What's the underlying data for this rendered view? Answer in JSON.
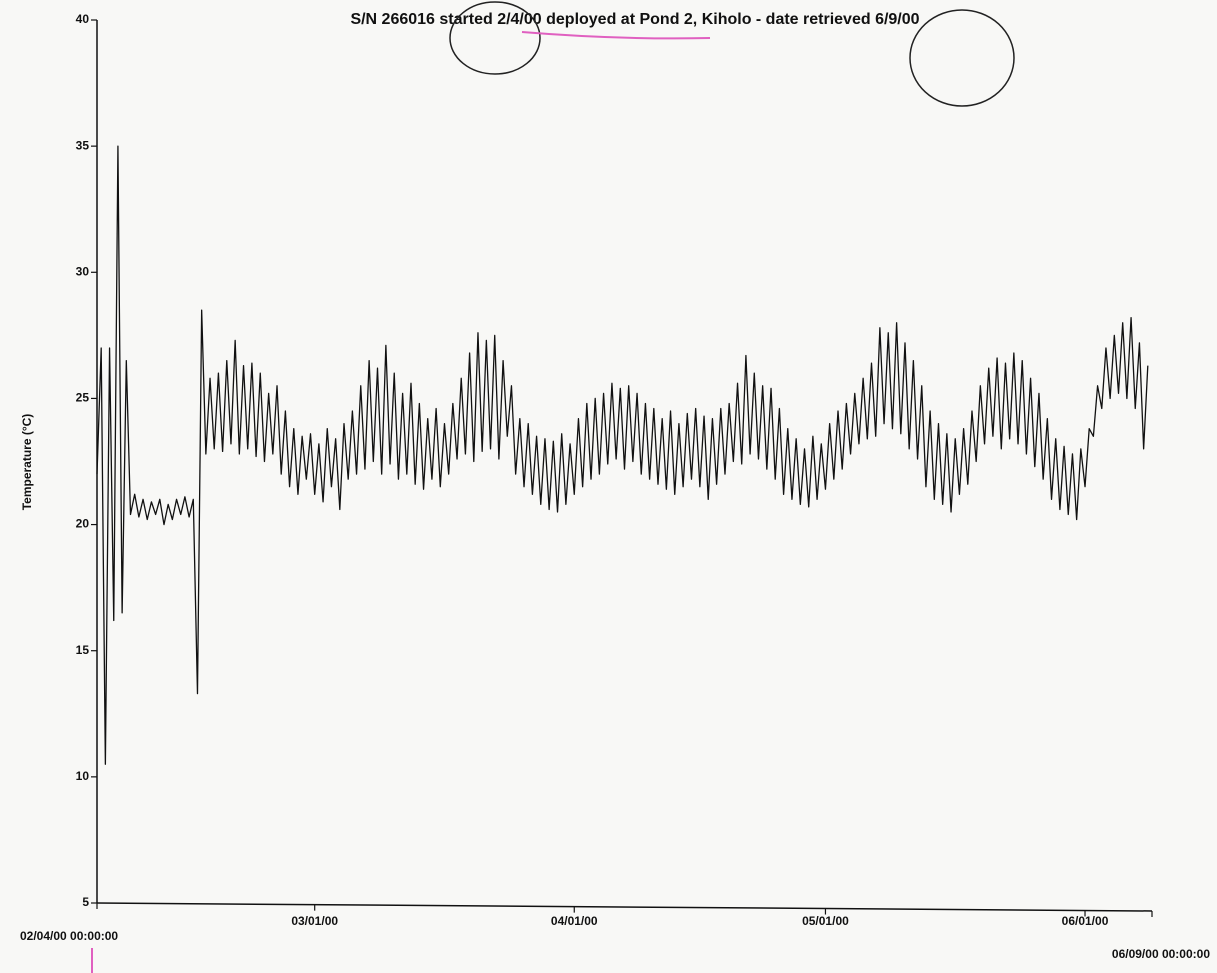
{
  "chart_data": {
    "type": "line",
    "title": "S/N 266016 started 2/4/00 deployed at Pond 2, Kiholo - date retrieved 6/9/00",
    "y_label": "Temperature  (°C)",
    "color": "#111111",
    "xlim": [
      "2000-02-04T00:00",
      "2000-06-09T00:00"
    ],
    "xticks": [
      {
        "value": "2000-02-04T00:00",
        "label": "02/04/00 00:00:00"
      },
      {
        "value": "2000-03-01T00:00",
        "label": "03/01/00"
      },
      {
        "value": "2000-04-01T00:00",
        "label": "04/01/00"
      },
      {
        "value": "2000-05-01T00:00",
        "label": "05/01/00"
      },
      {
        "value": "2000-06-01T00:00",
        "label": "06/01/00"
      },
      {
        "value": "2000-06-09T00:00",
        "label": "06/09/00 00:00:00"
      }
    ],
    "ylim": [
      5,
      40
    ],
    "yticks": [
      5,
      10,
      15,
      20,
      25,
      30,
      35,
      40
    ],
    "x": [
      "2000-02-04T00:00",
      "2000-02-04T12:00",
      "2000-02-05T00:00",
      "2000-02-05T12:00",
      "2000-02-06T00:00",
      "2000-02-06T12:00",
      "2000-02-07T00:00",
      "2000-02-07T12:00",
      "2000-02-08T00:00",
      "2000-02-08T12:00",
      "2000-02-09T00:00",
      "2000-02-09T12:00",
      "2000-02-10T00:00",
      "2000-02-10T12:00",
      "2000-02-11T00:00",
      "2000-02-11T12:00",
      "2000-02-12T00:00",
      "2000-02-12T12:00",
      "2000-02-13T00:00",
      "2000-02-13T12:00",
      "2000-02-14T00:00",
      "2000-02-14T12:00",
      "2000-02-15T00:00",
      "2000-02-15T12:00",
      "2000-02-16T00:00",
      "2000-02-16T12:00",
      "2000-02-17T00:00",
      "2000-02-17T12:00",
      "2000-02-18T00:00",
      "2000-02-18T12:00",
      "2000-02-19T00:00",
      "2000-02-19T12:00",
      "2000-02-20T00:00",
      "2000-02-20T12:00",
      "2000-02-21T00:00",
      "2000-02-21T12:00",
      "2000-02-22T00:00",
      "2000-02-22T12:00",
      "2000-02-23T00:00",
      "2000-02-23T12:00",
      "2000-02-24T00:00",
      "2000-02-24T12:00",
      "2000-02-25T00:00",
      "2000-02-25T12:00",
      "2000-02-26T00:00",
      "2000-02-26T12:00",
      "2000-02-27T00:00",
      "2000-02-27T12:00",
      "2000-02-28T00:00",
      "2000-02-28T12:00",
      "2000-02-29T00:00",
      "2000-02-29T12:00",
      "2000-03-01T00:00",
      "2000-03-01T12:00",
      "2000-03-02T00:00",
      "2000-03-02T12:00",
      "2000-03-03T00:00",
      "2000-03-03T12:00",
      "2000-03-04T00:00",
      "2000-03-04T12:00",
      "2000-03-05T00:00",
      "2000-03-05T12:00",
      "2000-03-06T00:00",
      "2000-03-06T12:00",
      "2000-03-07T00:00",
      "2000-03-07T12:00",
      "2000-03-08T00:00",
      "2000-03-08T12:00",
      "2000-03-09T00:00",
      "2000-03-09T12:00",
      "2000-03-10T00:00",
      "2000-03-10T12:00",
      "2000-03-11T00:00",
      "2000-03-11T12:00",
      "2000-03-12T00:00",
      "2000-03-12T12:00",
      "2000-03-13T00:00",
      "2000-03-13T12:00",
      "2000-03-14T00:00",
      "2000-03-14T12:00",
      "2000-03-15T00:00",
      "2000-03-15T12:00",
      "2000-03-16T00:00",
      "2000-03-16T12:00",
      "2000-03-17T00:00",
      "2000-03-17T12:00",
      "2000-03-18T00:00",
      "2000-03-18T12:00",
      "2000-03-19T00:00",
      "2000-03-19T12:00",
      "2000-03-20T00:00",
      "2000-03-20T12:00",
      "2000-03-21T00:00",
      "2000-03-21T12:00",
      "2000-03-22T00:00",
      "2000-03-22T12:00",
      "2000-03-23T00:00",
      "2000-03-23T12:00",
      "2000-03-24T00:00",
      "2000-03-24T12:00",
      "2000-03-25T00:00",
      "2000-03-25T12:00",
      "2000-03-26T00:00",
      "2000-03-26T12:00",
      "2000-03-27T00:00",
      "2000-03-27T12:00",
      "2000-03-28T00:00",
      "2000-03-28T12:00",
      "2000-03-29T00:00",
      "2000-03-29T12:00",
      "2000-03-30T00:00",
      "2000-03-30T12:00",
      "2000-03-31T00:00",
      "2000-03-31T12:00",
      "2000-04-01T00:00",
      "2000-04-01T12:00",
      "2000-04-02T00:00",
      "2000-04-02T12:00",
      "2000-04-03T00:00",
      "2000-04-03T12:00",
      "2000-04-04T00:00",
      "2000-04-04T12:00",
      "2000-04-05T00:00",
      "2000-04-05T12:00",
      "2000-04-06T00:00",
      "2000-04-06T12:00",
      "2000-04-07T00:00",
      "2000-04-07T12:00",
      "2000-04-08T00:00",
      "2000-04-08T12:00",
      "2000-04-09T00:00",
      "2000-04-09T12:00",
      "2000-04-10T00:00",
      "2000-04-10T12:00",
      "2000-04-11T00:00",
      "2000-04-11T12:00",
      "2000-04-12T00:00",
      "2000-04-12T12:00",
      "2000-04-13T00:00",
      "2000-04-13T12:00",
      "2000-04-14T00:00",
      "2000-04-14T12:00",
      "2000-04-15T00:00",
      "2000-04-15T12:00",
      "2000-04-16T00:00",
      "2000-04-16T12:00",
      "2000-04-17T00:00",
      "2000-04-17T12:00",
      "2000-04-18T00:00",
      "2000-04-18T12:00",
      "2000-04-19T00:00",
      "2000-04-19T12:00",
      "2000-04-20T00:00",
      "2000-04-20T12:00",
      "2000-04-21T00:00",
      "2000-04-21T12:00",
      "2000-04-22T00:00",
      "2000-04-22T12:00",
      "2000-04-23T00:00",
      "2000-04-23T12:00",
      "2000-04-24T00:00",
      "2000-04-24T12:00",
      "2000-04-25T00:00",
      "2000-04-25T12:00",
      "2000-04-26T00:00",
      "2000-04-26T12:00",
      "2000-04-27T00:00",
      "2000-04-27T12:00",
      "2000-04-28T00:00",
      "2000-04-28T12:00",
      "2000-04-29T00:00",
      "2000-04-29T12:00",
      "2000-04-30T00:00",
      "2000-04-30T12:00",
      "2000-05-01T00:00",
      "2000-05-01T12:00",
      "2000-05-02T00:00",
      "2000-05-02T12:00",
      "2000-05-03T00:00",
      "2000-05-03T12:00",
      "2000-05-04T00:00",
      "2000-05-04T12:00",
      "2000-05-05T00:00",
      "2000-05-05T12:00",
      "2000-05-06T00:00",
      "2000-05-06T12:00",
      "2000-05-07T00:00",
      "2000-05-07T12:00",
      "2000-05-08T00:00",
      "2000-05-08T12:00",
      "2000-05-09T00:00",
      "2000-05-09T12:00",
      "2000-05-10T00:00",
      "2000-05-10T12:00",
      "2000-05-11T00:00",
      "2000-05-11T12:00",
      "2000-05-12T00:00",
      "2000-05-12T12:00",
      "2000-05-13T00:00",
      "2000-05-13T12:00",
      "2000-05-14T00:00",
      "2000-05-14T12:00",
      "2000-05-15T00:00",
      "2000-05-15T12:00",
      "2000-05-16T00:00",
      "2000-05-16T12:00",
      "2000-05-17T00:00",
      "2000-05-17T12:00",
      "2000-05-18T00:00",
      "2000-05-18T12:00",
      "2000-05-19T00:00",
      "2000-05-19T12:00",
      "2000-05-20T00:00",
      "2000-05-20T12:00",
      "2000-05-21T00:00",
      "2000-05-21T12:00",
      "2000-05-22T00:00",
      "2000-05-22T12:00",
      "2000-05-23T00:00",
      "2000-05-23T12:00",
      "2000-05-24T00:00",
      "2000-05-24T12:00",
      "2000-05-25T00:00",
      "2000-05-25T12:00",
      "2000-05-26T00:00",
      "2000-05-26T12:00",
      "2000-05-27T00:00",
      "2000-05-27T12:00",
      "2000-05-28T00:00",
      "2000-05-28T12:00",
      "2000-05-29T00:00",
      "2000-05-29T12:00",
      "2000-05-30T00:00",
      "2000-05-30T12:00",
      "2000-05-31T00:00",
      "2000-05-31T12:00",
      "2000-06-01T00:00",
      "2000-06-01T12:00",
      "2000-06-02T00:00",
      "2000-06-02T12:00",
      "2000-06-03T00:00",
      "2000-06-03T12:00",
      "2000-06-04T00:00",
      "2000-06-04T12:00",
      "2000-06-05T00:00",
      "2000-06-05T12:00",
      "2000-06-06T00:00",
      "2000-06-06T12:00",
      "2000-06-07T00:00",
      "2000-06-07T12:00",
      "2000-06-08T00:00",
      "2000-06-08T12:00"
    ],
    "values": [
      22,
      27,
      10.5,
      27,
      16.2,
      35,
      16.5,
      26.5,
      20.4,
      21.2,
      20.3,
      21,
      20.2,
      20.9,
      20.4,
      21,
      20,
      20.8,
      20.2,
      21,
      20.4,
      21.1,
      20.3,
      21,
      13.3,
      28.5,
      22.8,
      25.8,
      23,
      26,
      22.9,
      26.5,
      23.2,
      27.3,
      22.8,
      26.3,
      23,
      26.4,
      22.7,
      26,
      22.5,
      25.2,
      22.8,
      25.5,
      22,
      24.5,
      21.5,
      23.8,
      21.2,
      23.5,
      21.8,
      23.6,
      21.2,
      23.2,
      20.9,
      23.8,
      21.5,
      23.4,
      20.6,
      24,
      21.8,
      24.5,
      22,
      25.5,
      22.2,
      26.5,
      22.5,
      26.2,
      22,
      27.1,
      22.4,
      26,
      21.8,
      25.2,
      22,
      25.6,
      21.6,
      24.8,
      21.4,
      24.2,
      21.8,
      24.6,
      21.5,
      24,
      22,
      24.8,
      22.6,
      25.8,
      22.8,
      26.8,
      22.5,
      27.6,
      22.9,
      27.3,
      23,
      27.5,
      22.6,
      26.5,
      23.5,
      25.5,
      22,
      24.2,
      21.5,
      24,
      21.2,
      23.5,
      20.8,
      23.4,
      20.6,
      23.3,
      20.5,
      23.6,
      20.8,
      23.2,
      21.2,
      24.2,
      21.5,
      24.8,
      21.8,
      25,
      22,
      25.2,
      22.4,
      25.6,
      22.6,
      25.4,
      22.2,
      25.5,
      22.5,
      25.2,
      22,
      24.8,
      21.8,
      24.6,
      21.6,
      24.2,
      21.4,
      24.5,
      21.2,
      24,
      21.5,
      24.4,
      21.8,
      24.6,
      21.5,
      24.3,
      21,
      24.2,
      21.6,
      24.6,
      22,
      24.8,
      22.5,
      25.6,
      22.4,
      26.7,
      22.8,
      26,
      22.6,
      25.5,
      22.2,
      25.4,
      21.8,
      24.6,
      21.2,
      23.8,
      21,
      23.4,
      20.8,
      23,
      20.7,
      23.5,
      21,
      23.2,
      21.4,
      24,
      21.8,
      24.5,
      22.2,
      24.8,
      22.8,
      25.2,
      23.2,
      25.8,
      23.4,
      26.4,
      23.5,
      27.8,
      24,
      27.6,
      23.8,
      28,
      23.6,
      27.2,
      23,
      26.5,
      22.6,
      25.5,
      21.5,
      24.5,
      21,
      24,
      20.8,
      23.6,
      20.5,
      23.4,
      21.2,
      23.8,
      21.6,
      24.5,
      22.5,
      25.5,
      23.2,
      26.2,
      23.5,
      26.6,
      23,
      26.4,
      23.4,
      26.8,
      23.2,
      26.5,
      22.8,
      25.8,
      22.3,
      25.2,
      21.8,
      24.2,
      21,
      23.4,
      20.6,
      23.1,
      20.4,
      22.8,
      20.2,
      23,
      21.5,
      23.8,
      23.5,
      25.5,
      24.6,
      27,
      25,
      27.5,
      25.2,
      28,
      25,
      28.2,
      24.6,
      27.2,
      23,
      26.3
    ]
  }
}
